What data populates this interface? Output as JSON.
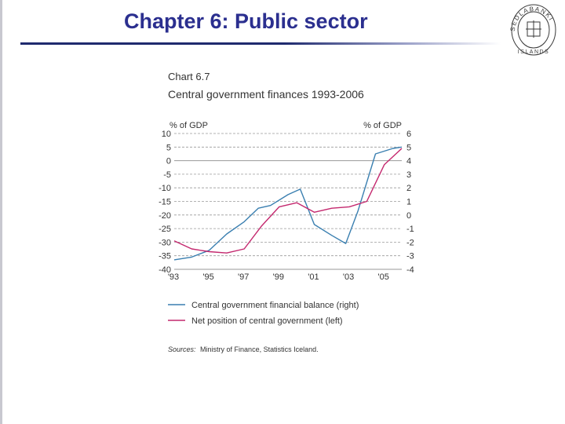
{
  "page": {
    "title": "Chapter 6: Public sector",
    "seal_text": "SEDLABANKI ISLANDS"
  },
  "colors": {
    "title": "#2b2f8f",
    "balance": "#3a7fb0",
    "net_position": "#c4286e",
    "grid": "#9a9a9a",
    "text": "#333333"
  },
  "chart_data": {
    "type": "line",
    "chart_number": "Chart 6.7",
    "title": "Central government finances 1993-2006",
    "left_axis_label": "% of GDP",
    "right_axis_label": "% of GDP",
    "left_ylim": [
      -40,
      10
    ],
    "right_ylim": [
      -4,
      6
    ],
    "left_ticks": [
      10,
      5,
      0,
      -5,
      -10,
      -15,
      -20,
      -25,
      -30,
      -35,
      -40
    ],
    "right_ticks": [
      6,
      5,
      4,
      3,
      2,
      1,
      0,
      -1,
      -2,
      -3,
      -4
    ],
    "xlim": [
      1993,
      2006
    ],
    "x_ticks": [
      {
        "year": 1993,
        "label": "'93"
      },
      {
        "year": 1995,
        "label": "'95"
      },
      {
        "year": 1997,
        "label": "'97"
      },
      {
        "year": 1999,
        "label": "'99"
      },
      {
        "year": 2001,
        "label": "'01"
      },
      {
        "year": 2003,
        "label": "'03"
      },
      {
        "year": 2005,
        "label": "'05"
      }
    ],
    "grid": "horizontal dashed",
    "series": [
      {
        "name": "Central government financial balance (right)",
        "axis": "right",
        "color": "#3a7fb0",
        "x": [
          1993,
          1994,
          1995,
          1996,
          1997,
          1997.8,
          1998.5,
          1999.5,
          2000.2,
          2001,
          2002,
          2002.8,
          2003.5,
          2004.5,
          2005.5,
          2006
        ],
        "y": [
          -3.3,
          -3.1,
          -2.6,
          -1.4,
          -0.5,
          0.5,
          0.7,
          1.5,
          1.9,
          -0.7,
          -1.5,
          -2.1,
          0.3,
          4.5,
          4.9,
          5.0
        ]
      },
      {
        "name": "Net position of central government (left)",
        "axis": "left",
        "color": "#c4286e",
        "x": [
          1993,
          1994,
          1995,
          1996,
          1997,
          1998,
          1999,
          2000,
          2001,
          2002,
          2003,
          2004,
          2005,
          2006
        ],
        "y": [
          -29.5,
          -32.5,
          -33.5,
          -34.0,
          -32.5,
          -24.0,
          -17.0,
          -15.5,
          -19.0,
          -17.5,
          -17.0,
          -15.0,
          -1.5,
          4.5
        ]
      }
    ],
    "legend": [
      "Central government financial balance (right)",
      "Net position of central government (left)"
    ],
    "legend_position": "bottom",
    "source_prefix": "Sources:",
    "source_text": "Ministry of Finance, Statistics Iceland."
  }
}
